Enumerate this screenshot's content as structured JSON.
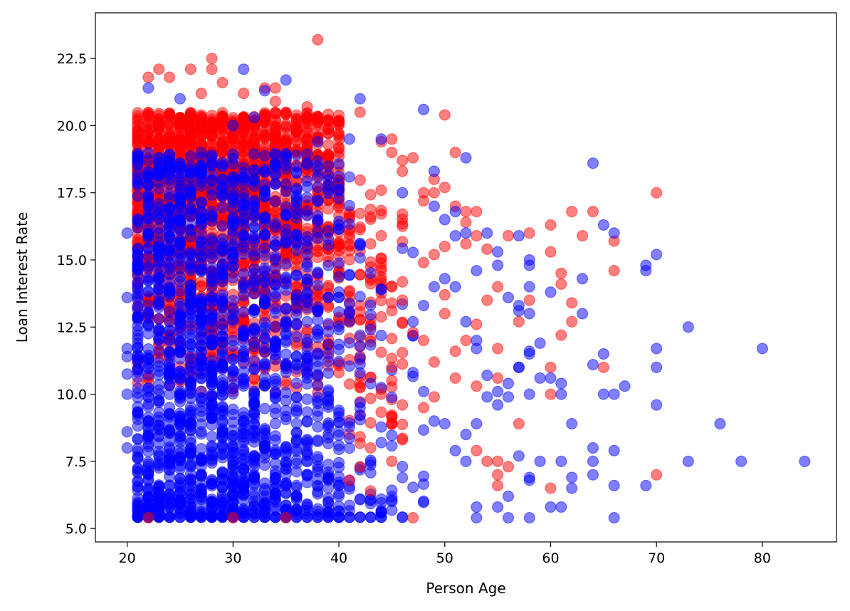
{
  "chart_data": {
    "type": "scatter",
    "title": "",
    "xlabel": "Person Age",
    "ylabel": "Loan Interest Rate",
    "xlim": [
      17,
      87
    ],
    "ylim": [
      4.5,
      24.2
    ],
    "xticks": [
      20,
      30,
      40,
      50,
      60,
      70,
      80
    ],
    "yticks": [
      5.0,
      7.5,
      10.0,
      12.5,
      15.0,
      17.5,
      20.0,
      22.5
    ],
    "ytick_labels": [
      "5.0",
      "7.5",
      "10.0",
      "12.5",
      "15.0",
      "17.5",
      "20.0",
      "22.5"
    ],
    "grid": false,
    "legend": "none",
    "marker_alpha": 0.5,
    "series": [
      {
        "color": "#0000ff",
        "dense_x_range": [
          21,
          48
        ],
        "dense_y_range": [
          5.42,
          19.0
        ],
        "dense_peak_x": 25,
        "points": [
          [
            20,
            16.0
          ],
          [
            20,
            13.6
          ],
          [
            20,
            11.7
          ],
          [
            20,
            11.4
          ],
          [
            20,
            10.75
          ],
          [
            20,
            10.0
          ],
          [
            20,
            8.6
          ],
          [
            20,
            8.0
          ],
          [
            21,
            18.8
          ],
          [
            22,
            21.4
          ],
          [
            25,
            21.0
          ],
          [
            30,
            20.0
          ],
          [
            31,
            22.1
          ],
          [
            32,
            20.3
          ],
          [
            33,
            21.3
          ],
          [
            35,
            21.7
          ],
          [
            38,
            19.4
          ],
          [
            41,
            19.5
          ],
          [
            42,
            21.0
          ],
          [
            44,
            19.5
          ],
          [
            46,
            17.5
          ],
          [
            48,
            20.6
          ],
          [
            49,
            18.3
          ],
          [
            49,
            17.0
          ],
          [
            50,
            16.5
          ],
          [
            51,
            16.8
          ],
          [
            51,
            15.9
          ],
          [
            52,
            16.0
          ],
          [
            52,
            18.8
          ],
          [
            54,
            16.0
          ],
          [
            55,
            15.3
          ],
          [
            55,
            14.8
          ],
          [
            56,
            13.6
          ],
          [
            57,
            13.3
          ],
          [
            57,
            13.1
          ],
          [
            57,
            15.9
          ],
          [
            58,
            14.8
          ],
          [
            58,
            15.0
          ],
          [
            58,
            14.0
          ],
          [
            58,
            13.0
          ],
          [
            59,
            11.9
          ],
          [
            58,
            11.6
          ],
          [
            58,
            11.5
          ],
          [
            60,
            13.8
          ],
          [
            60,
            10.6
          ],
          [
            61,
            10.4
          ],
          [
            61,
            10.0
          ],
          [
            62,
            8.9
          ],
          [
            63,
            14.3
          ],
          [
            63,
            13.0
          ],
          [
            64,
            18.6
          ],
          [
            64,
            11.1
          ],
          [
            65,
            16.3
          ],
          [
            65,
            11.5
          ],
          [
            65,
            10.0
          ],
          [
            66,
            16.0
          ],
          [
            66,
            10.0
          ],
          [
            67,
            10.3
          ],
          [
            69,
            14.8
          ],
          [
            69,
            14.6
          ],
          [
            70,
            15.2
          ],
          [
            70,
            11.7
          ],
          [
            70,
            11.0
          ],
          [
            70,
            9.6
          ],
          [
            73,
            12.5
          ],
          [
            76,
            8.9
          ],
          [
            80,
            11.7
          ],
          [
            55,
            9.6
          ],
          [
            56,
            10.4
          ],
          [
            57,
            11.0
          ],
          [
            58,
            10.0
          ],
          [
            59,
            10.6
          ],
          [
            60,
            5.8
          ],
          [
            61,
            5.8
          ],
          [
            62,
            6.9
          ],
          [
            62,
            6.5
          ],
          [
            61,
            7.5
          ],
          [
            64,
            8.0
          ],
          [
            64,
            7.5
          ],
          [
            64,
            7.0
          ],
          [
            66,
            7.9
          ],
          [
            66,
            6.6
          ],
          [
            66,
            5.4
          ],
          [
            69,
            6.6
          ],
          [
            73,
            7.5
          ],
          [
            78,
            7.5
          ],
          [
            84,
            7.5
          ],
          [
            55,
            5.8
          ],
          [
            56,
            6.2
          ],
          [
            56,
            5.4
          ],
          [
            58,
            5.4
          ],
          [
            58,
            6.8
          ],
          [
            58,
            6.9
          ],
          [
            59,
            7.5
          ],
          [
            57,
            7.7
          ],
          [
            53,
            5.8
          ],
          [
            53,
            5.4
          ],
          [
            52,
            7.5
          ],
          [
            51,
            7.9
          ],
          [
            50,
            8.9
          ],
          [
            49,
            9.0
          ],
          [
            48,
            10.1
          ],
          [
            47,
            10.8
          ],
          [
            47,
            12.7
          ],
          [
            48,
            13.3
          ],
          [
            49,
            14.0
          ],
          [
            50,
            14.3
          ],
          [
            51,
            14.0
          ],
          [
            53,
            11.7
          ],
          [
            54,
            10.7
          ],
          [
            53,
            12.0
          ],
          [
            52,
            12.7
          ],
          [
            53,
            8.9
          ],
          [
            52,
            8.5
          ],
          [
            54,
            9.9
          ],
          [
            55,
            10.1
          ],
          [
            56,
            9.9
          ],
          [
            57,
            11.0
          ],
          [
            53,
            14.6
          ]
        ]
      },
      {
        "color": "#ff0000",
        "dense_x_range": [
          21,
          46
        ],
        "dense_y_range": [
          6.0,
          20.5
        ],
        "dense_peak_x": 27,
        "points": [
          [
            38,
            23.2
          ],
          [
            28,
            22.5
          ],
          [
            28,
            22.1
          ],
          [
            23,
            22.1
          ],
          [
            26,
            22.1
          ],
          [
            22,
            21.8
          ],
          [
            24,
            21.8
          ],
          [
            29,
            21.6
          ],
          [
            27,
            21.2
          ],
          [
            31,
            21.2
          ],
          [
            33,
            21.4
          ],
          [
            34,
            21.4
          ],
          [
            34,
            20.9
          ],
          [
            35,
            20.5
          ],
          [
            37,
            20.7
          ],
          [
            42,
            20.5
          ],
          [
            50,
            20.4
          ],
          [
            44,
            19.4
          ],
          [
            45,
            19.5
          ],
          [
            45,
            19.0
          ],
          [
            47,
            18.8
          ],
          [
            46,
            18.7
          ],
          [
            46,
            18.3
          ],
          [
            48,
            17.5
          ],
          [
            48,
            17.2
          ],
          [
            49,
            17.5
          ],
          [
            49,
            18.0
          ],
          [
            50,
            17.7
          ],
          [
            51,
            19.0
          ],
          [
            51,
            17.0
          ],
          [
            52,
            16.8
          ],
          [
            52,
            16.4
          ],
          [
            53,
            16.8
          ],
          [
            52,
            15.6
          ],
          [
            53,
            15.9
          ],
          [
            54,
            15.4
          ],
          [
            56,
            15.9
          ],
          [
            58,
            16.0
          ],
          [
            60,
            16.3
          ],
          [
            60,
            15.3
          ],
          [
            61,
            14.5
          ],
          [
            61,
            14.1
          ],
          [
            62,
            16.8
          ],
          [
            63,
            15.9
          ],
          [
            64,
            16.8
          ],
          [
            66,
            15.7
          ],
          [
            66,
            14.6
          ],
          [
            70,
            17.5
          ],
          [
            62,
            13.4
          ],
          [
            62,
            12.7
          ],
          [
            61,
            12.2
          ],
          [
            60,
            11.0
          ],
          [
            60,
            10.0
          ],
          [
            58,
            13.5
          ],
          [
            57,
            12.7
          ],
          [
            55,
            14.0
          ],
          [
            54,
            13.5
          ],
          [
            53,
            12.6
          ],
          [
            52,
            12.0
          ],
          [
            50,
            13.0
          ],
          [
            51,
            11.6
          ],
          [
            55,
            11.7
          ],
          [
            55,
            10.6
          ],
          [
            53,
            10.3
          ],
          [
            51,
            10.6
          ],
          [
            49,
            9.9
          ],
          [
            48,
            9.5
          ],
          [
            65,
            11.0
          ],
          [
            57,
            8.9
          ],
          [
            53,
            7.9
          ],
          [
            54,
            7.5
          ],
          [
            55,
            7.5
          ],
          [
            55,
            7.0
          ],
          [
            55,
            6.6
          ],
          [
            56,
            7.3
          ],
          [
            60,
            6.5
          ],
          [
            70,
            7.0
          ],
          [
            47,
            5.4
          ],
          [
            22,
            5.4
          ],
          [
            30,
            5.4
          ],
          [
            35,
            5.4
          ],
          [
            44,
            14.7
          ],
          [
            45,
            14.0
          ],
          [
            46,
            13.5
          ],
          [
            47,
            12.3
          ],
          [
            45,
            11.0
          ],
          [
            44,
            10.0
          ],
          [
            46,
            9.6
          ],
          [
            46,
            8.3
          ],
          [
            45,
            7.5
          ],
          [
            43,
            8.0
          ],
          [
            42,
            7.3
          ],
          [
            41,
            6.8
          ],
          [
            43,
            6.4
          ],
          [
            48,
            12.0
          ],
          [
            49,
            11.2
          ],
          [
            50,
            13.7
          ],
          [
            50,
            15.5
          ],
          [
            49,
            15.2
          ],
          [
            48,
            14.9
          ]
        ]
      }
    ]
  }
}
